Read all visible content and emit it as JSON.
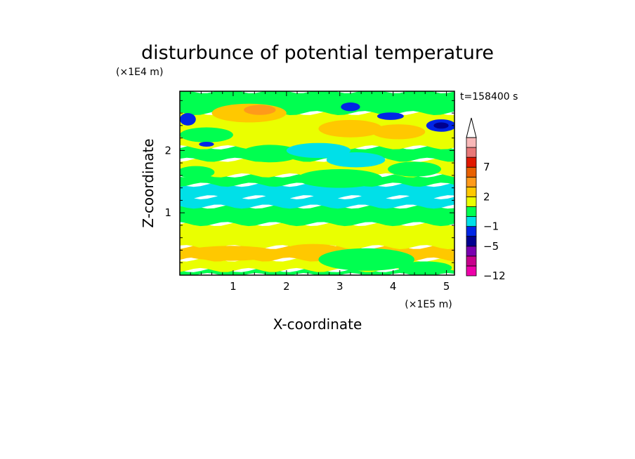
{
  "chart_data": {
    "type": "heatmap",
    "title": "disturbunce of potential temperature",
    "xlabel": "X-coordinate",
    "ylabel": "Z-coordinate",
    "x_unit": "(×1E5 m)",
    "y_unit": "(×1E4 m)",
    "time_label": "t=158400 s",
    "xlim": [
      0,
      5.15
    ],
    "ylim": [
      0,
      2.95
    ],
    "x_ticks": [
      {
        "value": 1,
        "label": "1"
      },
      {
        "value": 2,
        "label": "2"
      },
      {
        "value": 3,
        "label": "3"
      },
      {
        "value": 4,
        "label": "4"
      },
      {
        "value": 5,
        "label": "5"
      }
    ],
    "y_ticks": [
      {
        "value": 1,
        "label": "1"
      },
      {
        "value": 2,
        "label": "2"
      }
    ],
    "colorbar": {
      "levels": [
        {
          "upper": -12,
          "color": "#ee00aa"
        },
        {
          "upper": -9,
          "color": "#c8008c"
        },
        {
          "upper": -7,
          "color": "#7a00b0"
        },
        {
          "upper": -5,
          "color": "#000090"
        },
        {
          "upper": -3,
          "color": "#0026e6"
        },
        {
          "upper": -1,
          "color": "#00e0e8"
        },
        {
          "upper": 0,
          "color": "#00ff50"
        },
        {
          "upper": 1,
          "color": "#eaff00"
        },
        {
          "upper": 2,
          "color": "#ffc800"
        },
        {
          "upper": 4,
          "color": "#ff9a1a"
        },
        {
          "upper": 5,
          "color": "#e86000"
        },
        {
          "upper": 7,
          "color": "#e01800"
        },
        {
          "upper": 9,
          "color": "#e87878"
        },
        {
          "upper": 12,
          "color": "#f8b8b8"
        }
      ],
      "labels": [
        {
          "value": -12,
          "label": "−12"
        },
        {
          "value": -5,
          "label": "−5"
        },
        {
          "value": -1,
          "label": "−1"
        },
        {
          "value": 2,
          "label": "2"
        },
        {
          "value": 7,
          "label": "7"
        }
      ]
    },
    "colors": {
      "yellow": "#eaff00",
      "green": "#00ff50",
      "cyan": "#00e0e8",
      "orange": "#ffc800",
      "dark_orange": "#ff9a1a",
      "blue": "#0026e6",
      "navy": "#000090"
    },
    "bands": [
      {
        "z": [
          0.0,
          0.08
        ],
        "value": 0,
        "color_key": "green"
      },
      {
        "z": [
          0.08,
          0.25
        ],
        "value": 1,
        "color_key": "yellow"
      },
      {
        "z": [
          0.25,
          0.45
        ],
        "value": 2,
        "color_key": "orange"
      },
      {
        "z": [
          0.45,
          0.82
        ],
        "value": 1,
        "color_key": "yellow"
      },
      {
        "z": [
          0.82,
          1.1
        ],
        "value": 0,
        "color_key": "green"
      },
      {
        "z": [
          1.1,
          1.25
        ],
        "value": -1,
        "color_key": "cyan"
      },
      {
        "z": [
          1.25,
          1.45
        ],
        "value": -1,
        "color_key": "cyan"
      },
      {
        "z": [
          1.45,
          1.6
        ],
        "value": 0,
        "color_key": "green"
      },
      {
        "z": [
          1.6,
          1.85
        ],
        "value": 1,
        "color_key": "yellow"
      },
      {
        "z": [
          1.85,
          2.05
        ],
        "value": 0,
        "color_key": "green"
      },
      {
        "z": [
          2.05,
          2.6
        ],
        "value": 1,
        "color_key": "yellow"
      },
      {
        "z": [
          2.6,
          2.95
        ],
        "value": 0,
        "color_key": "green"
      }
    ],
    "blobs": [
      {
        "x": 0.95,
        "z": 0.35,
        "rx": 0.9,
        "rz": 0.12,
        "color_key": "orange"
      },
      {
        "x": 2.5,
        "z": 0.42,
        "rx": 0.5,
        "rz": 0.08,
        "color_key": "orange"
      },
      {
        "x": 3.5,
        "z": 0.25,
        "rx": 0.9,
        "rz": 0.18,
        "color_key": "green"
      },
      {
        "x": 4.6,
        "z": 0.12,
        "rx": 0.5,
        "rz": 0.1,
        "color_key": "green"
      },
      {
        "x": 0.3,
        "z": 1.65,
        "rx": 0.35,
        "rz": 0.1,
        "color_key": "green"
      },
      {
        "x": 3.0,
        "z": 1.55,
        "rx": 0.8,
        "rz": 0.15,
        "color_key": "green"
      },
      {
        "x": 3.3,
        "z": 1.85,
        "rx": 0.55,
        "rz": 0.12,
        "color_key": "cyan"
      },
      {
        "x": 4.4,
        "z": 1.7,
        "rx": 0.5,
        "rz": 0.12,
        "color_key": "green"
      },
      {
        "x": 0.5,
        "z": 2.25,
        "rx": 0.5,
        "rz": 0.12,
        "color_key": "green"
      },
      {
        "x": 1.7,
        "z": 1.95,
        "rx": 0.55,
        "rz": 0.14,
        "color_key": "green"
      },
      {
        "x": 2.6,
        "z": 2.0,
        "rx": 0.6,
        "rz": 0.12,
        "color_key": "cyan"
      },
      {
        "x": 1.3,
        "z": 2.6,
        "rx": 0.7,
        "rz": 0.15,
        "color_key": "orange"
      },
      {
        "x": 1.5,
        "z": 2.65,
        "rx": 0.3,
        "rz": 0.08,
        "color_key": "dark_orange"
      },
      {
        "x": 3.2,
        "z": 2.35,
        "rx": 0.6,
        "rz": 0.14,
        "color_key": "orange"
      },
      {
        "x": 4.1,
        "z": 2.3,
        "rx": 0.5,
        "rz": 0.12,
        "color_key": "orange"
      },
      {
        "x": 0.15,
        "z": 2.5,
        "rx": 0.15,
        "rz": 0.1,
        "color_key": "blue"
      },
      {
        "x": 0.5,
        "z": 2.1,
        "rx": 0.14,
        "rz": 0.04,
        "color_key": "blue"
      },
      {
        "x": 3.2,
        "z": 2.7,
        "rx": 0.18,
        "rz": 0.07,
        "color_key": "blue"
      },
      {
        "x": 3.95,
        "z": 2.55,
        "rx": 0.25,
        "rz": 0.06,
        "color_key": "blue"
      },
      {
        "x": 4.9,
        "z": 2.4,
        "rx": 0.28,
        "rz": 0.1,
        "color_key": "blue"
      },
      {
        "x": 4.9,
        "z": 2.4,
        "rx": 0.14,
        "rz": 0.05,
        "color_key": "navy"
      }
    ]
  }
}
